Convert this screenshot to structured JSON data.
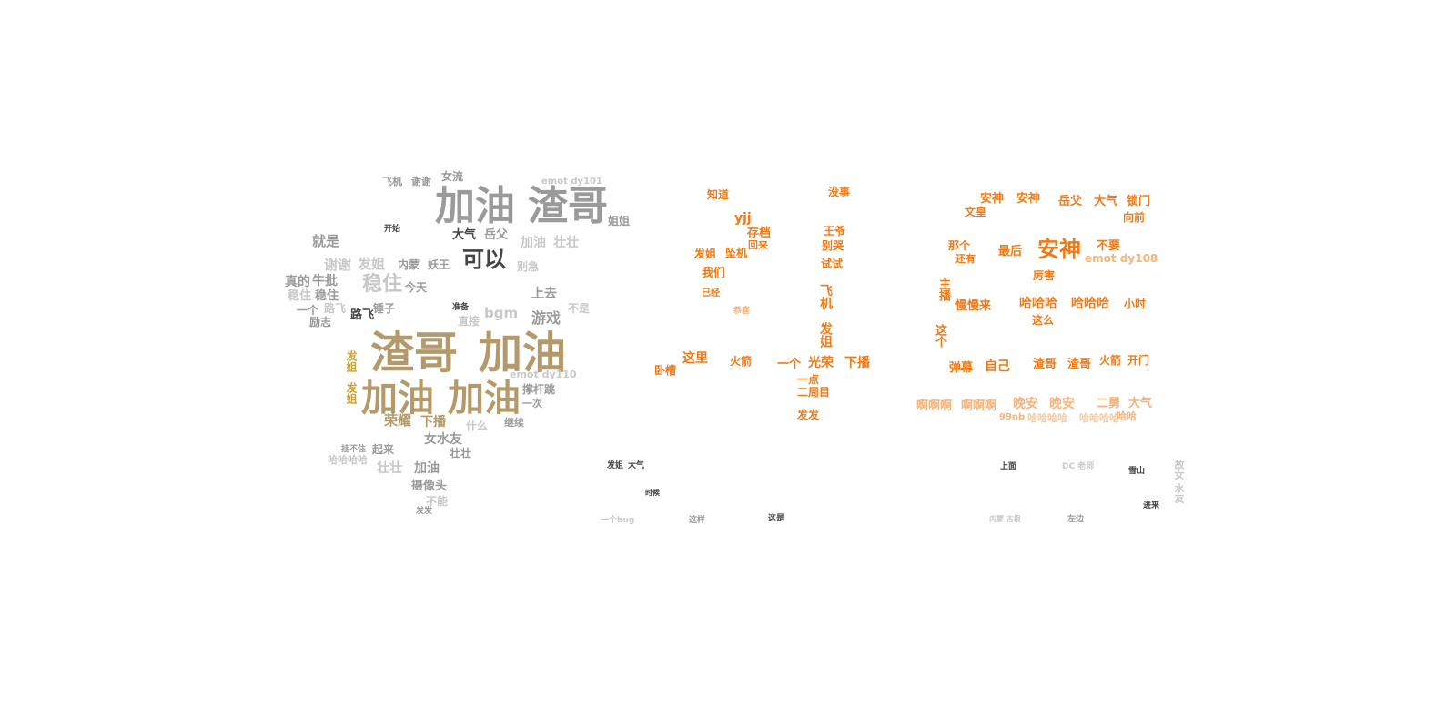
{
  "palette": {
    "gray": "#9a9a9a",
    "lightgray": "#c8c8c8",
    "dark": "#444444",
    "tan": "#b49a6a",
    "gold": "#c9a23c",
    "orange": "#f07a16",
    "lightorange": "#f6b37a",
    "paleorange": "#f5c9a0"
  },
  "words": [
    {
      "text": "加油",
      "c": "gray"
    },
    {
      "text": "渣哥",
      "c": "gray"
    },
    {
      "text": "可以",
      "c": "dark"
    },
    {
      "text": "渣哥",
      "c": "tan"
    },
    {
      "text": "加油",
      "c": "tan"
    },
    {
      "text": "加油",
      "c": "tan"
    },
    {
      "text": "加油",
      "c": "tan"
    },
    {
      "text": "稳住",
      "c": "lightgray"
    },
    {
      "text": "就是",
      "c": "gray"
    },
    {
      "text": "谢谢",
      "c": "lightgray"
    },
    {
      "text": "发姐",
      "c": "lightgray"
    },
    {
      "text": "真的",
      "c": "gray"
    },
    {
      "text": "牛批",
      "c": "gray"
    },
    {
      "text": "稳住",
      "c": "lightgray"
    },
    {
      "text": "稳住",
      "c": "gray"
    },
    {
      "text": "一个",
      "c": "gray"
    },
    {
      "text": "路飞",
      "c": "lightgray"
    },
    {
      "text": "励志",
      "c": "gray"
    },
    {
      "text": "路飞",
      "c": "dark"
    },
    {
      "text": "锤子",
      "c": "gray"
    },
    {
      "text": "今天",
      "c": "gray"
    },
    {
      "text": "内蒙",
      "c": "gray"
    },
    {
      "text": "妖王",
      "c": "gray"
    },
    {
      "text": "大气",
      "c": "dark"
    },
    {
      "text": "岳父",
      "c": "gray"
    },
    {
      "text": "姐姐",
      "c": "gray"
    },
    {
      "text": "壮壮",
      "c": "lightgray"
    },
    {
      "text": "加油",
      "c": "lightgray"
    },
    {
      "text": "bgm",
      "c": "lightgray"
    },
    {
      "text": "别急",
      "c": "lightgray"
    },
    {
      "text": "游戏",
      "c": "gray"
    },
    {
      "text": "上去",
      "c": "gray"
    },
    {
      "text": "不是",
      "c": "lightgray"
    },
    {
      "text": "直接",
      "c": "lightgray"
    },
    {
      "text": "荣耀",
      "c": "tan"
    },
    {
      "text": "下播",
      "c": "tan"
    },
    {
      "text": "女水友",
      "c": "gray"
    },
    {
      "text": "起来",
      "c": "gray"
    },
    {
      "text": "壮壮",
      "c": "gray"
    },
    {
      "text": "摄像头",
      "c": "gray"
    },
    {
      "text": "加油",
      "c": "gray"
    },
    {
      "text": "壮壮",
      "c": "lightgray"
    },
    {
      "text": "哈哈哈哈",
      "c": "lightgray"
    },
    {
      "text": "撑杆跳",
      "c": "gray"
    },
    {
      "text": "一次",
      "c": "gray"
    },
    {
      "text": "继续",
      "c": "gray"
    },
    {
      "text": "什么",
      "c": "lightgray"
    },
    {
      "text": "emot dy101",
      "c": "lightgray"
    },
    {
      "text": "emot dy110",
      "c": "lightgray"
    },
    {
      "text": "女流",
      "c": "gray"
    },
    {
      "text": "谢谢",
      "c": "gray"
    },
    {
      "text": "飞机",
      "c": "gray"
    },
    {
      "text": "开始",
      "c": "dark"
    },
    {
      "text": "准备",
      "c": "dark"
    },
    {
      "text": "发姐",
      "c": "gold"
    },
    {
      "text": "发姐",
      "c": "gold"
    },
    {
      "text": "不能",
      "c": "lightgray"
    },
    {
      "text": "发发",
      "c": "gray"
    },
    {
      "text": "挂不住",
      "c": "gray"
    },
    {
      "text": "知道",
      "c": "orange"
    },
    {
      "text": "yjj",
      "c": "orange"
    },
    {
      "text": "存档",
      "c": "orange"
    },
    {
      "text": "回来",
      "c": "orange"
    },
    {
      "text": "坠机",
      "c": "orange"
    },
    {
      "text": "发姐",
      "c": "orange"
    },
    {
      "text": "我们",
      "c": "orange"
    },
    {
      "text": "已经",
      "c": "orange"
    },
    {
      "text": "恭喜",
      "c": "lightorange"
    },
    {
      "text": "没事",
      "c": "orange"
    },
    {
      "text": "王爷",
      "c": "orange"
    },
    {
      "text": "别哭",
      "c": "orange"
    },
    {
      "text": "试试",
      "c": "orange"
    },
    {
      "text": "飞机",
      "c": "orange"
    },
    {
      "text": "发姐",
      "c": "orange"
    },
    {
      "text": "这里",
      "c": "orange"
    },
    {
      "text": "火箭",
      "c": "orange"
    },
    {
      "text": "卧槽",
      "c": "orange"
    },
    {
      "text": "一个",
      "c": "orange"
    },
    {
      "text": "光荣",
      "c": "orange"
    },
    {
      "text": "下播",
      "c": "orange"
    },
    {
      "text": "一点",
      "c": "orange"
    },
    {
      "text": "二周目",
      "c": "orange"
    },
    {
      "text": "发发",
      "c": "orange"
    },
    {
      "text": "安神",
      "c": "orange"
    },
    {
      "text": "安神",
      "c": "orange"
    },
    {
      "text": "岳父",
      "c": "orange"
    },
    {
      "text": "大气",
      "c": "orange"
    },
    {
      "text": "锁门",
      "c": "orange"
    },
    {
      "text": "文皇",
      "c": "orange"
    },
    {
      "text": "向前",
      "c": "orange"
    },
    {
      "text": "安神",
      "c": "orange"
    },
    {
      "text": "不要",
      "c": "orange"
    },
    {
      "text": "那个",
      "c": "orange"
    },
    {
      "text": "最后",
      "c": "orange"
    },
    {
      "text": "还有",
      "c": "orange"
    },
    {
      "text": "emot dy108",
      "c": "lightorange"
    },
    {
      "text": "厉害",
      "c": "orange"
    },
    {
      "text": "主播",
      "c": "orange"
    },
    {
      "text": "慢慢来",
      "c": "orange"
    },
    {
      "text": "哈哈哈",
      "c": "orange"
    },
    {
      "text": "哈哈哈",
      "c": "orange"
    },
    {
      "text": "小时",
      "c": "orange"
    },
    {
      "text": "这么",
      "c": "orange"
    },
    {
      "text": "这个",
      "c": "orange"
    },
    {
      "text": "弹幕",
      "c": "orange"
    },
    {
      "text": "自己",
      "c": "orange"
    },
    {
      "text": "渣哥",
      "c": "orange"
    },
    {
      "text": "渣哥",
      "c": "orange"
    },
    {
      "text": "火箭",
      "c": "orange"
    },
    {
      "text": "开门",
      "c": "orange"
    },
    {
      "text": "啊啊啊",
      "c": "lightorange"
    },
    {
      "text": "啊啊啊",
      "c": "lightorange"
    },
    {
      "text": "晚安",
      "c": "lightorange"
    },
    {
      "text": "晚安",
      "c": "lightorange"
    },
    {
      "text": "二舅",
      "c": "lightorange"
    },
    {
      "text": "大气",
      "c": "lightorange"
    },
    {
      "text": "哈哈哈哈",
      "c": "paleorange"
    },
    {
      "text": "哈哈哈哈",
      "c": "paleorange"
    },
    {
      "text": "哈哈",
      "c": "lightorange"
    },
    {
      "text": "99nb",
      "c": "lightorange"
    },
    {
      "text": "发姐",
      "c": "dark"
    },
    {
      "text": "大气",
      "c": "dark"
    },
    {
      "text": "时候",
      "c": "dark"
    },
    {
      "text": "一个bug",
      "c": "lightgray"
    },
    {
      "text": "这样",
      "c": "gray"
    },
    {
      "text": "这是",
      "c": "dark"
    },
    {
      "text": "上面",
      "c": "dark"
    },
    {
      "text": "DC 老师",
      "c": "lightgray"
    },
    {
      "text": "雪山",
      "c": "dark"
    },
    {
      "text": "进来",
      "c": "dark"
    },
    {
      "text": "左边",
      "c": "gray"
    },
    {
      "text": "内蒙 古根",
      "c": "lightgray"
    },
    {
      "text": "故女 水友",
      "c": "lightgray"
    }
  ]
}
